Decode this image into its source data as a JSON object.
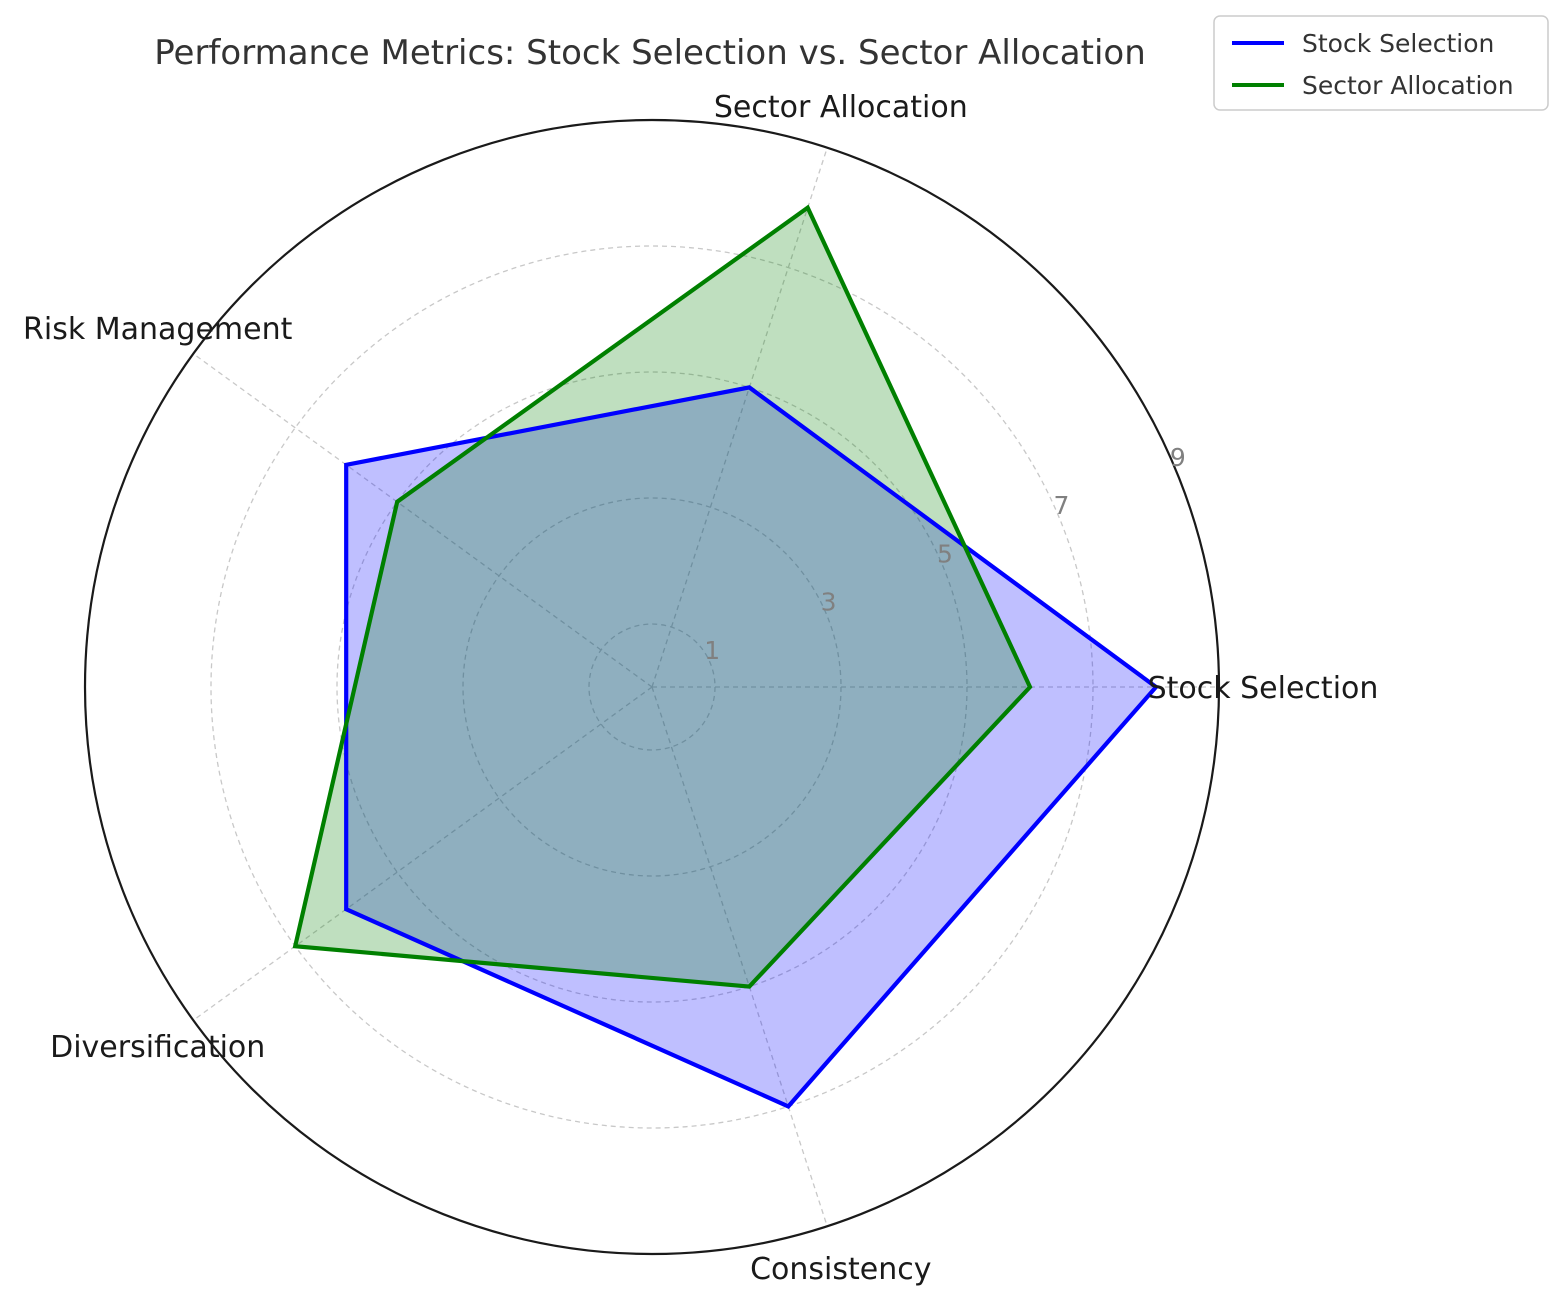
{
  "chart_data": {
    "type": "radar",
    "title": "Performance Metrics: Stock Selection vs. Sector Allocation",
    "categories": [
      "Stock Selection",
      "Sector Allocation",
      "Risk Management",
      "Diversification",
      "Consistency"
    ],
    "rlim": [
      0,
      9
    ],
    "rticks": [
      1,
      3,
      5,
      7,
      9
    ],
    "rtick_labels": [
      "1",
      "3",
      "5",
      "7",
      "9"
    ],
    "grid": true,
    "legend_position": "top-right",
    "series": [
      {
        "name": "Stock Selection",
        "values": [
          8,
          5,
          6,
          6,
          7
        ],
        "color": "#0000ff",
        "fill": "#0000ff",
        "fill_opacity": 0.25
      },
      {
        "name": "Sector Allocation",
        "values": [
          6,
          8,
          5,
          7,
          5
        ],
        "color": "#008000",
        "fill": "#008000",
        "fill_opacity": 0.25
      }
    ]
  }
}
